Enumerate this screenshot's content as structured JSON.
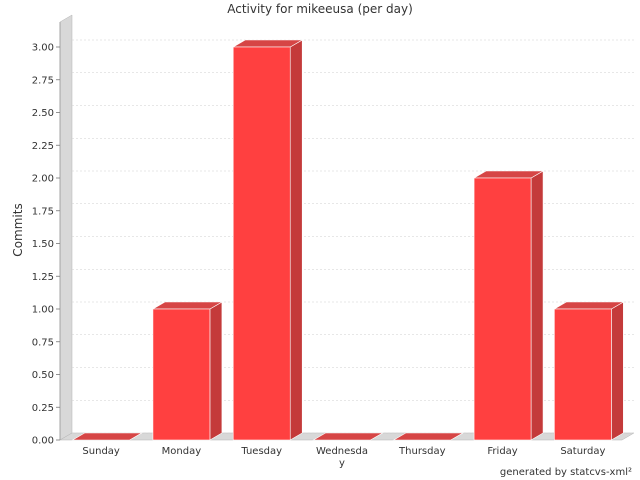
{
  "chart_data": {
    "type": "bar",
    "title": "Activity for mikeeusa (per day)",
    "xlabel": "",
    "ylabel": "Commits",
    "categories": [
      "Sunday",
      "Monday",
      "Tuesday",
      "Wednesday",
      "Thursday",
      "Friday",
      "Saturday"
    ],
    "category_display": [
      [
        "Sunday"
      ],
      [
        "Monday"
      ],
      [
        "Tuesday"
      ],
      [
        "Wednesda",
        "y"
      ],
      [
        "Thursday"
      ],
      [
        "Friday"
      ],
      [
        "Saturday"
      ]
    ],
    "values": [
      0,
      1,
      3,
      0,
      0,
      2,
      1
    ],
    "ylim": [
      0,
      3.0
    ],
    "yticks": [
      0,
      0.25,
      0.5,
      0.75,
      1.0,
      1.25,
      1.5,
      1.75,
      2.0,
      2.25,
      2.5,
      2.75,
      3.0
    ],
    "ytick_labels": [
      "0.00",
      "0.25",
      "0.50",
      "0.75",
      "1.00",
      "1.25",
      "1.50",
      "1.75",
      "2.00",
      "2.25",
      "2.50",
      "2.75",
      "3.00"
    ],
    "grid": true,
    "bar_color": "#ff4040",
    "bar_side_color": "#c43a3a",
    "bar_top_color": "#d64545",
    "wall_color": "#d8d8d8",
    "grid_color": "#cfcfcf"
  },
  "footer": {
    "credit": "generated by statcvs-xml²"
  }
}
